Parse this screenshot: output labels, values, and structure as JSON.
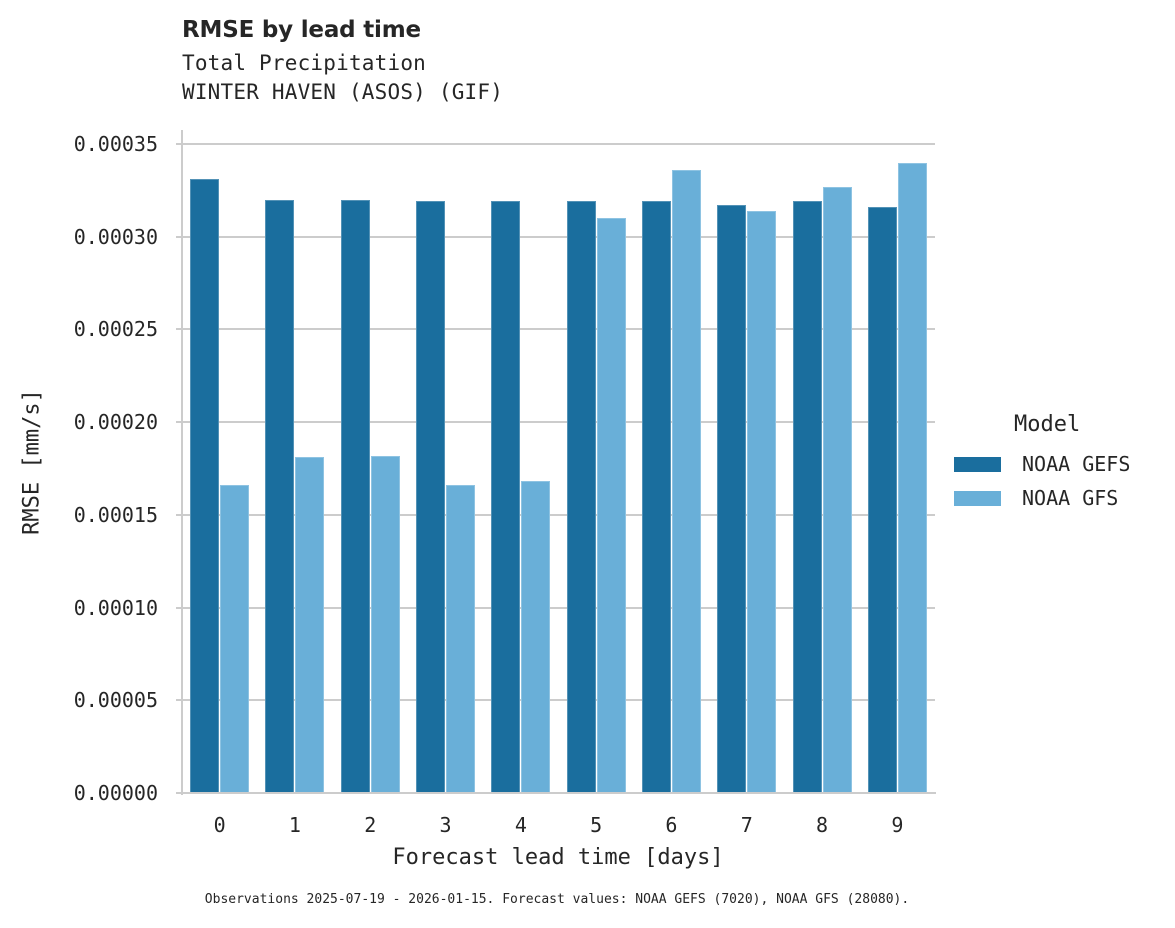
{
  "header": {
    "title": "RMSE by lead time",
    "subtitle_line1": "Total Precipitation",
    "subtitle_line2": "WINTER HAVEN (ASOS) (GIF)"
  },
  "axes": {
    "ylabel": "RMSE [mm/s]",
    "xlabel": "Forecast lead time [days]",
    "yticks": [
      "0.00000",
      "0.00005",
      "0.00010",
      "0.00015",
      "0.00020",
      "0.00025",
      "0.00030",
      "0.00035"
    ],
    "xticks": [
      "0",
      "1",
      "2",
      "3",
      "4",
      "5",
      "6",
      "7",
      "8",
      "9"
    ]
  },
  "legend": {
    "title": "Model",
    "items": [
      {
        "label": "NOAA GEFS",
        "color": "#1a6e9e"
      },
      {
        "label": "NOAA GFS",
        "color": "#69afd8"
      }
    ]
  },
  "footnote": "Observations 2025-07-19 - 2026-01-15. Forecast values: NOAA GEFS (7020), NOAA GFS (28080).",
  "chart_data": {
    "type": "bar",
    "title": "RMSE by lead time",
    "subtitle": "Total Precipitation — WINTER HAVEN (ASOS) (GIF)",
    "xlabel": "Forecast lead time [days]",
    "ylabel": "RMSE [mm/s]",
    "categories": [
      "0",
      "1",
      "2",
      "3",
      "4",
      "5",
      "6",
      "7",
      "8",
      "9"
    ],
    "series": [
      {
        "name": "NOAA GEFS",
        "color": "#1a6e9e",
        "values": [
          0.000331,
          0.00032,
          0.00032,
          0.000319,
          0.000319,
          0.000319,
          0.000319,
          0.000317,
          0.000319,
          0.000316
        ]
      },
      {
        "name": "NOAA GFS",
        "color": "#69afd8",
        "values": [
          0.000166,
          0.000181,
          0.000182,
          0.000166,
          0.000168,
          0.00031,
          0.000336,
          0.000314,
          0.000327,
          0.00034
        ]
      }
    ],
    "ylim": [
      0,
      0.000358
    ],
    "yticks": [
      0,
      5e-05,
      0.0001,
      0.00015,
      0.0002,
      0.00025,
      0.0003,
      0.00035
    ],
    "grid": "horizontal",
    "legend_position": "right",
    "legend_title": "Model"
  }
}
